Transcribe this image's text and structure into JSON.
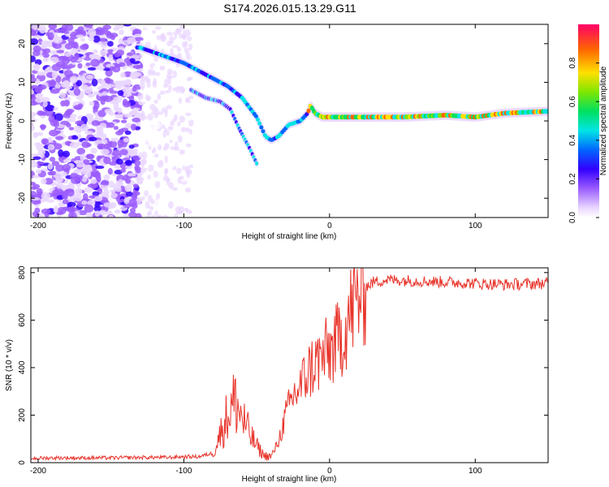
{
  "chart_data": [
    {
      "type": "heatmap",
      "title": "S174.2026.015.13.29.G11",
      "xlabel": "Height of straight line (km)",
      "ylabel": "Frequency (Hz)",
      "xlim": [
        -205,
        150
      ],
      "ylim": [
        -25,
        25
      ],
      "x_ticks": [
        -200,
        -100,
        0,
        100
      ],
      "y_ticks": [
        -20,
        -10,
        0,
        10,
        20
      ],
      "colorbar": {
        "label": "Normalized spectral amplitude",
        "range": [
          0,
          1
        ],
        "ticks": [
          "0.0",
          "0.2",
          "0.4",
          "0.6",
          "0.8"
        ]
      },
      "ridge": {
        "description_points_x": [
          -130,
          -115,
          -100,
          -85,
          -70,
          -60,
          -50,
          -44,
          -40,
          -35,
          -28,
          -20,
          -15,
          -13,
          -10,
          -5,
          0,
          20,
          50,
          80,
          100,
          120,
          150
        ],
        "frequency_hz": [
          19,
          17,
          15,
          12,
          9,
          6,
          1,
          -4,
          -5,
          -4,
          -1,
          0,
          2,
          4,
          2,
          1,
          1,
          1,
          1,
          1.5,
          1,
          2,
          2.5
        ],
        "lower_branch_x": [
          -95,
          -85,
          -75,
          -68,
          -62,
          -55,
          -50
        ],
        "lower_branch_hz": [
          8,
          6,
          5,
          3,
          -2,
          -7,
          -11
        ]
      }
    },
    {
      "type": "line",
      "title": "",
      "xlabel": "Height of straight line (km)",
      "ylabel": "SNR (10 * v/v)",
      "xlim": [
        -205,
        150
      ],
      "ylim": [
        0,
        820
      ],
      "x_ticks": [
        -200,
        -100,
        0,
        100
      ],
      "y_ticks": [
        0,
        200,
        400,
        600,
        800
      ],
      "series": [
        {
          "name": "SNR",
          "color": "#e8332a",
          "x": [
            -205,
            -190,
            -170,
            -150,
            -130,
            -110,
            -100,
            -90,
            -80,
            -75,
            -70,
            -65,
            -60,
            -55,
            -50,
            -45,
            -40,
            -35,
            -30,
            -25,
            -20,
            -15,
            -10,
            -5,
            0,
            5,
            10,
            15,
            20,
            25,
            30,
            40,
            60,
            80,
            100,
            120,
            150
          ],
          "y": [
            18,
            20,
            20,
            20,
            22,
            22,
            25,
            25,
            40,
            120,
            200,
            260,
            190,
            120,
            70,
            30,
            25,
            90,
            200,
            280,
            320,
            380,
            420,
            440,
            470,
            500,
            560,
            640,
            700,
            740,
            760,
            770,
            765,
            760,
            755,
            750,
            755
          ]
        }
      ]
    }
  ]
}
